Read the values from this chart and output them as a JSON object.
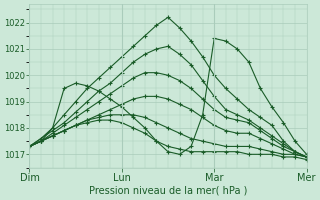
{
  "title": "Pression niveau de la mer( hPa )",
  "bg_color": "#cce8d8",
  "grid_color": "#aaccbb",
  "line_color": "#1a5c28",
  "ylim": [
    1016.5,
    1022.7
  ],
  "yticks": [
    1017,
    1018,
    1019,
    1020,
    1021,
    1022
  ],
  "xlim": [
    0,
    144
  ],
  "xlabel_ticks": [
    0,
    48,
    96,
    144
  ],
  "xlabel_labels": [
    "Dim",
    "Lun",
    "Mar",
    "Mer"
  ],
  "hours": [
    0,
    6,
    12,
    18,
    24,
    30,
    36,
    42,
    48,
    54,
    60,
    66,
    72,
    78,
    84,
    90,
    96,
    102,
    108,
    114,
    120,
    126,
    132,
    138,
    144
  ],
  "series": [
    [
      1017.3,
      1017.6,
      1018.0,
      1018.5,
      1019.0,
      1019.5,
      1019.9,
      1020.3,
      1020.7,
      1021.1,
      1021.5,
      1021.9,
      1022.2,
      1021.8,
      1021.3,
      1020.7,
      1020.0,
      1019.5,
      1019.1,
      1018.7,
      1018.4,
      1018.1,
      1017.5,
      1017.1,
      1016.9
    ],
    [
      1017.3,
      1017.6,
      1017.9,
      1018.2,
      1018.6,
      1019.0,
      1019.4,
      1019.7,
      1020.1,
      1020.5,
      1020.8,
      1021.0,
      1021.1,
      1020.8,
      1020.4,
      1019.8,
      1019.2,
      1018.7,
      1018.5,
      1018.3,
      1018.0,
      1017.7,
      1017.4,
      1017.1,
      1016.9
    ],
    [
      1017.3,
      1017.5,
      1017.8,
      1018.1,
      1018.4,
      1018.7,
      1019.0,
      1019.3,
      1019.6,
      1019.9,
      1020.1,
      1020.1,
      1020.0,
      1019.8,
      1019.5,
      1019.1,
      1018.7,
      1018.4,
      1018.3,
      1018.2,
      1017.9,
      1017.6,
      1017.3,
      1017.1,
      1016.9
    ],
    [
      1017.3,
      1017.5,
      1017.7,
      1017.9,
      1018.1,
      1018.3,
      1018.5,
      1018.7,
      1018.9,
      1019.1,
      1019.2,
      1019.2,
      1019.1,
      1018.9,
      1018.7,
      1018.4,
      1018.1,
      1017.9,
      1017.8,
      1017.8,
      1017.6,
      1017.4,
      1017.2,
      1017.0,
      1016.9
    ],
    [
      1017.3,
      1017.5,
      1017.7,
      1017.9,
      1018.1,
      1018.3,
      1018.4,
      1018.5,
      1018.5,
      1018.5,
      1018.4,
      1018.2,
      1018.0,
      1017.8,
      1017.6,
      1017.5,
      1017.4,
      1017.3,
      1017.3,
      1017.3,
      1017.2,
      1017.1,
      1017.0,
      1017.0,
      1016.9
    ],
    [
      1017.3,
      1017.5,
      1017.7,
      1017.9,
      1018.1,
      1018.2,
      1018.3,
      1018.3,
      1018.2,
      1018.0,
      1017.8,
      1017.5,
      1017.3,
      1017.2,
      1017.1,
      1017.1,
      1017.1,
      1017.1,
      1017.1,
      1017.0,
      1017.0,
      1017.0,
      1016.9,
      1016.9,
      1016.8
    ],
    [
      1017.3,
      1017.5,
      1018.0,
      1019.5,
      1019.7,
      1019.6,
      1019.4,
      1019.1,
      1018.8,
      1018.4,
      1018.0,
      1017.5,
      1017.1,
      1017.0,
      1017.3,
      1018.5,
      1021.4,
      1021.3,
      1021.0,
      1020.5,
      1019.5,
      1018.8,
      1018.2,
      1017.5,
      1017.0
    ]
  ]
}
